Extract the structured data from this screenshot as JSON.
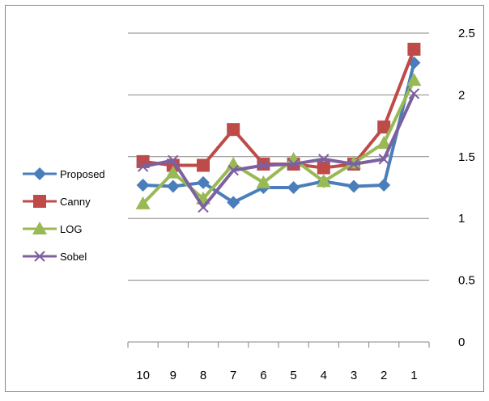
{
  "chart_data": {
    "type": "line",
    "title": "",
    "xlabel": "",
    "ylabel": "",
    "categories": [
      "10",
      "9",
      "8",
      "7",
      "6",
      "5",
      "4",
      "3",
      "2",
      "1"
    ],
    "ylim": [
      0,
      2.5
    ],
    "y_ticks": [
      "0",
      "0.5",
      "1",
      "1.5",
      "2",
      "2.5"
    ],
    "y_axis_side": "right",
    "grid": true,
    "legend_position": "left",
    "series": [
      {
        "name": "Proposed",
        "color": "#4a7ebb",
        "marker": "diamond",
        "values": [
          1.27,
          1.26,
          1.29,
          1.13,
          1.25,
          1.25,
          1.3,
          1.26,
          1.27,
          2.26
        ]
      },
      {
        "name": "Canny",
        "color": "#be4b48",
        "marker": "square",
        "values": [
          1.46,
          1.43,
          1.43,
          1.72,
          1.44,
          1.44,
          1.41,
          1.44,
          1.74,
          2.37
        ]
      },
      {
        "name": "LOG",
        "color": "#98b954",
        "marker": "triangle",
        "values": [
          1.12,
          1.37,
          1.16,
          1.44,
          1.29,
          1.48,
          1.3,
          1.45,
          1.61,
          2.12
        ]
      },
      {
        "name": "Sobel",
        "color": "#7d60a0",
        "marker": "x",
        "values": [
          1.42,
          1.47,
          1.09,
          1.39,
          1.43,
          1.44,
          1.48,
          1.44,
          1.48,
          2.01
        ]
      }
    ]
  }
}
